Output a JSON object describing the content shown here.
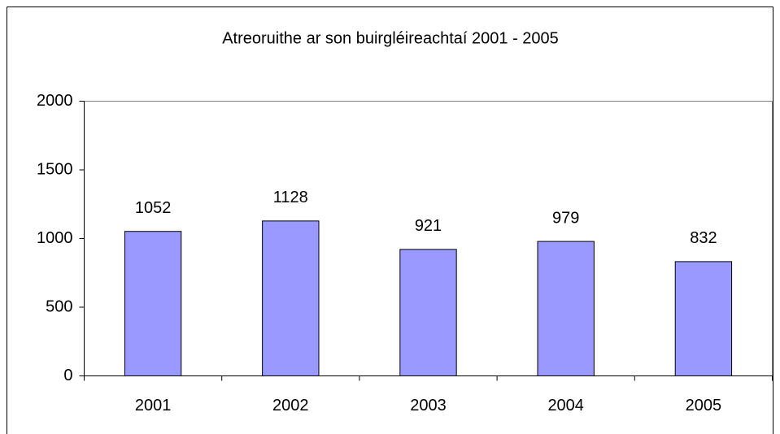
{
  "chart_data": {
    "type": "bar",
    "title": "Atreoruithe ar son buirgléireachtaí 2001 - 2005",
    "categories": [
      "2001",
      "2002",
      "2003",
      "2004",
      "2005"
    ],
    "values": [
      1052,
      1128,
      921,
      979,
      832
    ],
    "color": "#9999ff",
    "ylim": [
      0,
      2000
    ],
    "yticks": [
      0,
      500,
      1000,
      1500,
      2000
    ],
    "grid": false
  }
}
